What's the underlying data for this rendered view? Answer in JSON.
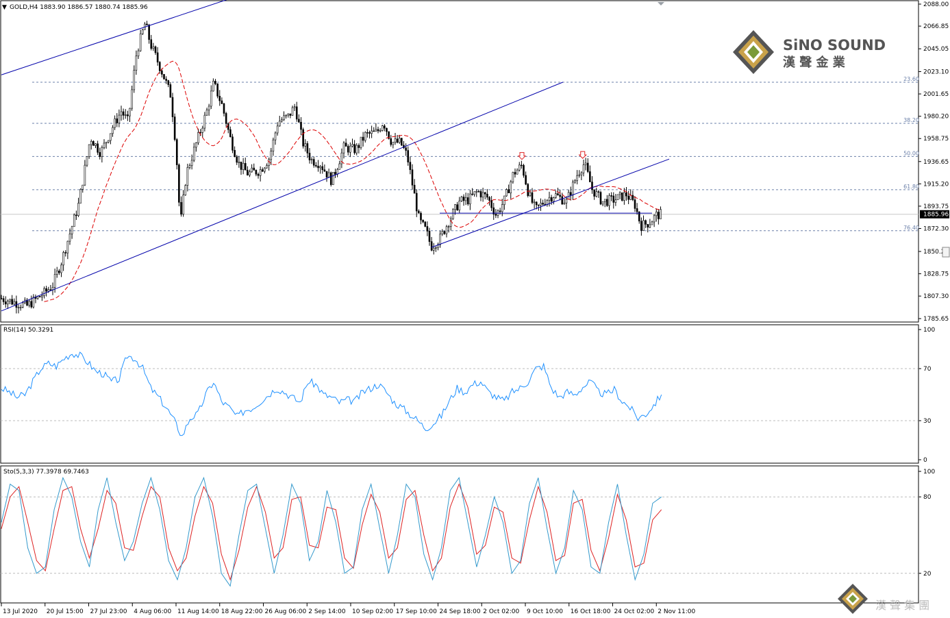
{
  "main_header": {
    "symbol": "GOLD,H4",
    "ohlc": "1883.90 1886.57 1880.74 1885.96"
  },
  "rsi_header": "RSI(14) 50.3291",
  "sto_header": "Sto(5,3,3) 77.3978 69.7463",
  "logo": {
    "name_en": "SiNO SOUND",
    "name_cn": "漢 聲 金 業",
    "footer_cn": "漢 聲 集 團"
  },
  "colors": {
    "trendline": "#0000aa",
    "ma": "#dd0000",
    "rsi": "#1e90ff",
    "sto_main": "#3399cc",
    "sto_signal": "#dd2222",
    "fib": "#6a7fa8",
    "current_price_box": "#000000"
  },
  "chart_data": [
    {
      "type": "candlestick",
      "title": "GOLD,H4",
      "price_axis_ticks": [
        "2088.00",
        "2066.85",
        "2045.05",
        "2023.10",
        "2001.65",
        "1980.20",
        "1958.75",
        "1936.65",
        "1915.20",
        "1893.75",
        "1872.30",
        "1850.2",
        "1828.75",
        "1807.30",
        "1785.65"
      ],
      "current_price": "1885.96",
      "x_labels": [
        "13 Jul 2020",
        "20 Jul 15:00",
        "27 Jul 23:00",
        "4 Aug 06:00",
        "11 Aug 14:00",
        "18 Aug 22:00",
        "26 Aug 06:00",
        "2 Sep 14:00",
        "10 Sep 02:00",
        "17 Sep 10:00",
        "24 Sep 18:00",
        "2 Oct 02:00",
        "9 Oct 10:00",
        "16 Oct 18:00",
        "24 Oct 02:00",
        "2 Nov 11:00"
      ],
      "price_path": [
        [
          0,
          1805
        ],
        [
          3,
          1798
        ],
        [
          5,
          1810
        ],
        [
          6,
          1818
        ],
        [
          7,
          1840
        ],
        [
          7.8,
          1862
        ],
        [
          9,
          1895
        ],
        [
          10.4,
          1960
        ],
        [
          11.6,
          1945
        ],
        [
          13,
          1970
        ],
        [
          14,
          1985
        ],
        [
          14.8,
          1975
        ],
        [
          15.8,
          2042
        ],
        [
          16.8,
          2070
        ],
        [
          17.4,
          2050
        ],
        [
          18.8,
          2022
        ],
        [
          19.8,
          2000
        ],
        [
          20.4,
          1950
        ],
        [
          20.9,
          1875
        ],
        [
          21.6,
          1925
        ],
        [
          22.8,
          1955
        ],
        [
          24,
          1985
        ],
        [
          24.8,
          2012
        ],
        [
          25.8,
          1990
        ],
        [
          26.7,
          1960
        ],
        [
          27.7,
          1935
        ],
        [
          28.8,
          1925
        ],
        [
          30.2,
          1928
        ],
        [
          31.3,
          1940
        ],
        [
          32.3,
          1975
        ],
        [
          33.5,
          1980
        ],
        [
          34.3,
          1990
        ],
        [
          35.2,
          1955
        ],
        [
          36.2,
          1938
        ],
        [
          37.2,
          1935
        ],
        [
          38.6,
          1918
        ],
        [
          40,
          1950
        ],
        [
          41.4,
          1948
        ],
        [
          42.5,
          1962
        ],
        [
          43.9,
          1965
        ],
        [
          44.6,
          1975
        ],
        [
          45.6,
          1955
        ],
        [
          46.6,
          1955
        ],
        [
          47.4,
          1942
        ],
        [
          48,
          1915
        ],
        [
          48.8,
          1880
        ],
        [
          49.6,
          1870
        ],
        [
          50.2,
          1855
        ],
        [
          51.2,
          1862
        ],
        [
          52.3,
          1880
        ],
        [
          53.5,
          1898
        ],
        [
          54.6,
          1900
        ],
        [
          55.6,
          1908
        ],
        [
          56.8,
          1902
        ],
        [
          57.8,
          1885
        ],
        [
          58.8,
          1900
        ],
        [
          59.8,
          1925
        ],
        [
          60.8,
          1933
        ],
        [
          61.6,
          1905
        ],
        [
          62.4,
          1890
        ],
        [
          63.6,
          1900
        ],
        [
          64.6,
          1905
        ],
        [
          66,
          1898
        ],
        [
          67.3,
          1925
        ],
        [
          68.1,
          1935
        ],
        [
          69,
          1910
        ],
        [
          70.2,
          1898
        ],
        [
          71.6,
          1900
        ],
        [
          73,
          1905
        ],
        [
          74,
          1895
        ],
        [
          74.7,
          1875
        ],
        [
          75.7,
          1878
        ],
        [
          76.5,
          1885
        ],
        [
          77.1,
          1886
        ]
      ],
      "fib_levels": [
        {
          "label": "23.60",
          "y": 2012.9
        },
        {
          "label": "38.20",
          "y": 1973.4
        },
        {
          "label": "50.00",
          "y": 1941.5
        },
        {
          "label": "61.80",
          "y": 1909.6
        },
        {
          "label": "76.40",
          "y": 1870.1
        }
      ],
      "trendlines": [
        {
          "name": "channel-upper",
          "from": [
            0,
            2020
          ],
          "to": [
            65.6,
            2200
          ]
        },
        {
          "name": "main-support",
          "from": [
            0,
            1793
          ],
          "to": [
            65.6,
            2013
          ]
        },
        {
          "name": "inner-support",
          "from": [
            50.2,
            1854
          ],
          "to": [
            78,
            1939
          ]
        },
        {
          "name": "neckline",
          "from": [
            51.2,
            1887
          ],
          "to": [
            76,
            1887
          ]
        }
      ],
      "markers": [
        {
          "type": "arrow-down",
          "x": 60.8,
          "y": 1940
        },
        {
          "type": "arrow-down",
          "x": 67.9,
          "y": 1941
        }
      ]
    },
    {
      "type": "line",
      "title": "RSI(14) 50.3291",
      "y_ticks": [
        "100",
        "70",
        "30",
        "0"
      ],
      "levels": [
        70,
        30
      ],
      "ylim": [
        0,
        100
      ],
      "values": [
        55,
        52,
        48,
        50,
        60,
        70,
        74,
        72,
        78,
        82,
        80,
        75,
        68,
        66,
        60,
        62,
        80,
        78,
        70,
        55,
        48,
        40,
        30,
        18,
        32,
        35,
        50,
        60,
        45,
        40,
        33,
        38,
        40,
        45,
        50,
        55,
        52,
        48,
        44,
        60,
        58,
        50,
        48,
        44,
        46,
        45,
        52,
        55,
        58,
        52,
        44,
        40,
        35,
        30,
        24,
        28,
        34,
        45,
        55,
        52,
        58,
        60,
        52,
        48,
        45,
        52,
        55,
        60,
        70,
        72,
        55,
        48,
        52,
        50,
        56,
        60,
        52,
        50,
        54,
        45,
        40,
        32,
        35,
        42,
        50
      ]
    },
    {
      "type": "line",
      "title": "Sto(5,3,3) 77.3978 69.7463",
      "y_ticks": [
        "100",
        "80",
        "20"
      ],
      "levels": [
        80,
        20
      ],
      "ylim": [
        0,
        100
      ],
      "series": [
        {
          "name": "main",
          "values": [
            60,
            90,
            85,
            40,
            20,
            25,
            70,
            95,
            80,
            45,
            25,
            70,
            95,
            60,
            30,
            45,
            75,
            95,
            70,
            30,
            15,
            40,
            80,
            95,
            65,
            20,
            10,
            50,
            85,
            90,
            55,
            20,
            50,
            90,
            75,
            30,
            45,
            85,
            60,
            20,
            25,
            70,
            90,
            55,
            20,
            50,
            90,
            80,
            35,
            15,
            40,
            85,
            95,
            60,
            25,
            50,
            80,
            60,
            20,
            30,
            75,
            95,
            55,
            20,
            40,
            85,
            70,
            25,
            20,
            60,
            90,
            50,
            15,
            35,
            75,
            80
          ]
        },
        {
          "name": "signal",
          "values": [
            55,
            80,
            88,
            60,
            30,
            22,
            55,
            85,
            88,
            55,
            32,
            55,
            85,
            75,
            40,
            38,
            65,
            88,
            80,
            40,
            22,
            32,
            65,
            88,
            75,
            35,
            15,
            38,
            72,
            88,
            68,
            32,
            40,
            78,
            80,
            42,
            40,
            72,
            70,
            32,
            24,
            58,
            82,
            68,
            32,
            40,
            78,
            85,
            50,
            22,
            32,
            72,
            90,
            72,
            35,
            42,
            72,
            68,
            32,
            28,
            62,
            88,
            68,
            30,
            34,
            75,
            78,
            38,
            22,
            48,
            82,
            62,
            25,
            28,
            62,
            70
          ]
        }
      ]
    }
  ]
}
